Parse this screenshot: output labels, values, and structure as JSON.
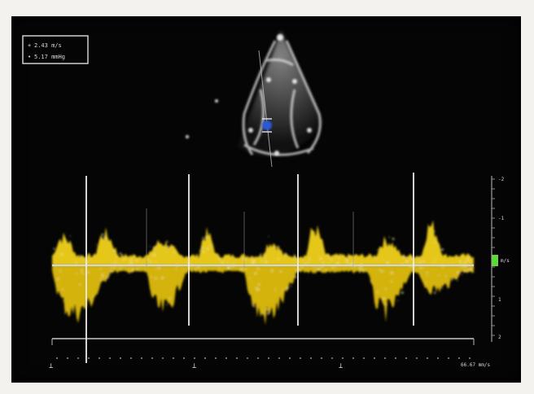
{
  "measurement": {
    "line1": "2.43 m/s",
    "line2": "5.17 mmHg"
  },
  "scale": {
    "ticks": [
      "-2",
      "-1",
      "",
      "1",
      "2"
    ],
    "unit_label": "m/s"
  },
  "sweep": {
    "speed_label": "66.67 mm/s"
  },
  "colors": {
    "doppler": "#f2d21b",
    "background": "#050505",
    "baseline": "#d8d8c8",
    "color_flow": "#2a58d8"
  }
}
